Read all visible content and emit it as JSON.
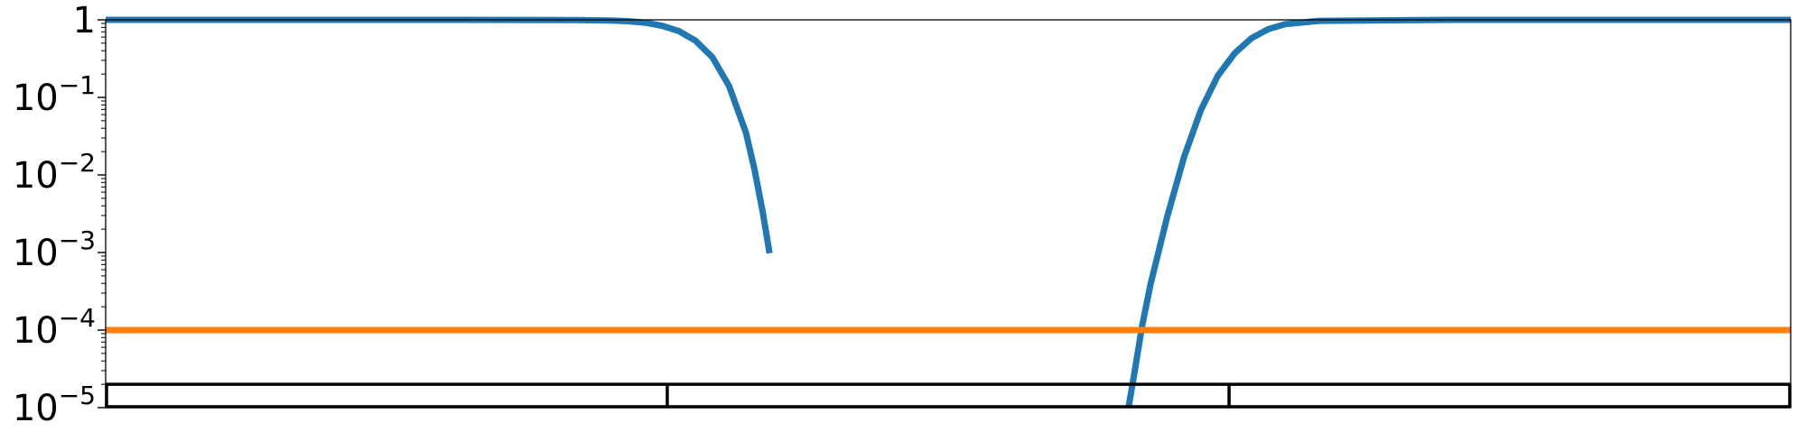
{
  "chart_data": {
    "type": "line",
    "title": "",
    "xlabel": "",
    "ylabel": "",
    "xscale": "linear",
    "yscale": "log",
    "xlim": [
      0,
      1
    ],
    "ylim": [
      1e-05,
      1
    ],
    "grid": false,
    "legend": "none",
    "y_ticks": [
      {
        "value": 1,
        "base": "1",
        "exp": ""
      },
      {
        "value": 0.1,
        "base": "10",
        "exp": "−1"
      },
      {
        "value": 0.01,
        "base": "10",
        "exp": "−2"
      },
      {
        "value": 0.001,
        "base": "10",
        "exp": "−3"
      },
      {
        "value": 0.0001,
        "base": "10",
        "exp": "−4"
      },
      {
        "value": 1e-05,
        "base": "10",
        "exp": "−5"
      }
    ],
    "series": [
      {
        "color": "#1f77b4",
        "style": "curve",
        "x": [
          0.0,
          0.1,
          0.2,
          0.28,
          0.3,
          0.31,
          0.32,
          0.33,
          0.34,
          0.35,
          0.36,
          0.37,
          0.38,
          0.385,
          0.39,
          0.394,
          0.607,
          0.61,
          0.615,
          0.62,
          0.63,
          0.64,
          0.65,
          0.66,
          0.67,
          0.68,
          0.69,
          0.7,
          0.72,
          0.8,
          0.9,
          1.0
        ],
        "y": [
          1.0,
          1.0,
          1.0,
          0.995,
          0.98,
          0.96,
          0.92,
          0.84,
          0.72,
          0.54,
          0.33,
          0.14,
          0.035,
          0.012,
          0.0033,
          0.00098,
          1e-05,
          2.4e-05,
          0.00011,
          0.00038,
          0.0029,
          0.017,
          0.069,
          0.19,
          0.37,
          0.58,
          0.76,
          0.88,
          0.97,
          1.0,
          1.0,
          1.0
        ]
      },
      {
        "color": "#ff7f0e",
        "style": "constant",
        "x": [
          0.0,
          1.0
        ],
        "y": [
          0.0001,
          0.0001
        ]
      }
    ],
    "bar_track": {
      "color": "#000000",
      "y_range": [
        1e-05,
        2e-05
      ],
      "dividers_x": [
        0.0,
        0.3333,
        0.6667,
        1.0
      ]
    }
  }
}
